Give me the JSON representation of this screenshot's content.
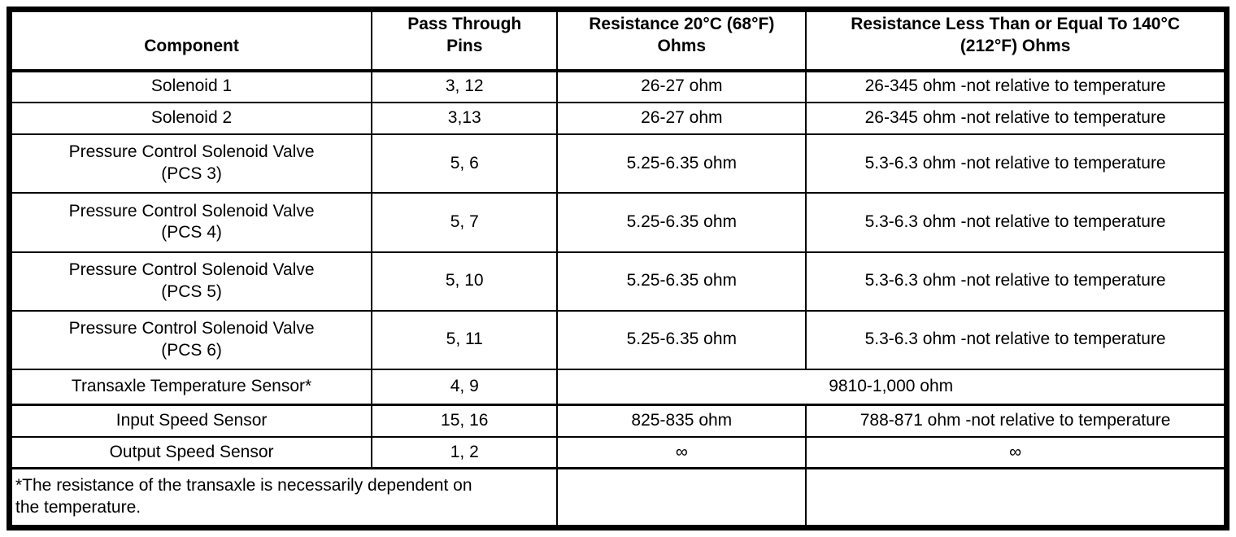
{
  "colors": {
    "background": "#ffffff",
    "border": "#000000",
    "text": "#000000"
  },
  "table": {
    "headers": {
      "component": "Component",
      "pins": "Pass Through\nPins",
      "resistance_20c": "Resistance 20°C (68°F)\nOhms",
      "resistance_140c": "Resistance Less Than or Equal To 140°C\n(212°F) Ohms"
    },
    "rows": [
      {
        "component": "Solenoid 1",
        "pins": "3, 12",
        "resistance_20c": "26-27 ohm",
        "resistance_140c": "26-345 ohm -not relative to temperature"
      },
      {
        "component": "Solenoid 2",
        "pins": "3,13",
        "resistance_20c": "26-27 ohm",
        "resistance_140c": "26-345 ohm -not relative to temperature"
      },
      {
        "component": "Pressure Control Solenoid Valve\n(PCS 3)",
        "pins": "5, 6",
        "resistance_20c": "5.25-6.35 ohm",
        "resistance_140c": "5.3-6.3 ohm -not relative to temperature"
      },
      {
        "component": "Pressure Control Solenoid Valve\n(PCS 4)",
        "pins": "5, 7",
        "resistance_20c": "5.25-6.35 ohm",
        "resistance_140c": "5.3-6.3 ohm -not relative to temperature"
      },
      {
        "component": "Pressure Control Solenoid Valve\n(PCS 5)",
        "pins": "5, 10",
        "resistance_20c": "5.25-6.35 ohm",
        "resistance_140c": "5.3-6.3 ohm -not relative to temperature"
      },
      {
        "component": "Pressure Control Solenoid Valve\n(PCS 6)",
        "pins": "5, 11",
        "resistance_20c": "5.25-6.35 ohm",
        "resistance_140c": "5.3-6.3 ohm -not relative to temperature"
      },
      {
        "component": "Transaxle Temperature Sensor*",
        "pins": "4, 9",
        "resistance_combined": "9810-1,000 ohm"
      },
      {
        "component": "Input Speed Sensor",
        "pins": "15, 16",
        "resistance_20c": "825-835 ohm",
        "resistance_140c": "788-871 ohm -not relative to temperature"
      },
      {
        "component": "Output Speed Sensor",
        "pins": "1, 2",
        "resistance_20c": "∞",
        "resistance_140c": "∞"
      }
    ],
    "footnote": "*The resistance of the transaxle is necessarily dependent on\nthe temperature."
  }
}
